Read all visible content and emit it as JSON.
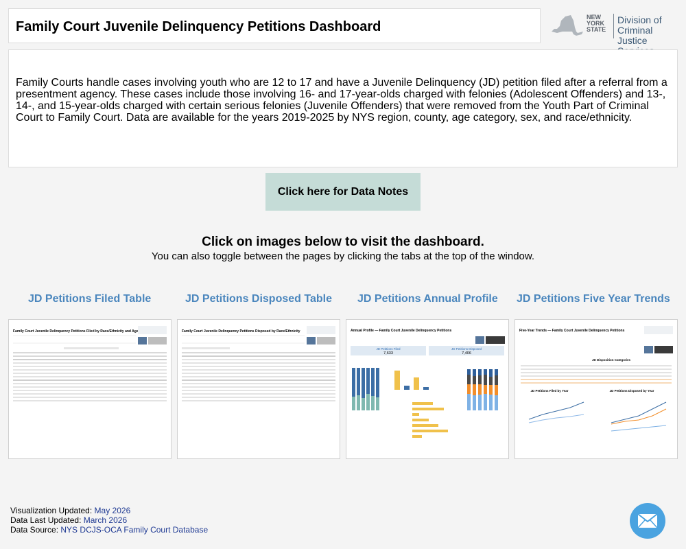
{
  "header": {
    "title": "Family Court Juvenile Delinquency Petitions Dashboard"
  },
  "logo": {
    "state_line1": "NEW",
    "state_line2": "YORK",
    "state_line3": "STATE",
    "agency_line1": "Division of Criminal",
    "agency_line2": "Justice Services"
  },
  "description": "Family Courts handle cases involving youth who are 12 to 17 and have a Juvenile Delinquency (JD) petition filed after a referral from a presentment agency. These cases include those involving 16- and 17-year-olds charged with felonies (Adolescent Offenders) and 13-, 14-, and 15-year-olds charged with certain serious felonies (Juvenile Offenders) that were removed from the Youth Part of Criminal Court to Family Court. Data are available for the years 2019-2025 by NYS region, county, age category, sex, and race/ethnicity.",
  "data_notes_button": "Click here for Data Notes",
  "instructions": {
    "title": "Click on images below to visit the dashboard.",
    "subtitle": "You can also toggle between the pages by clicking the tabs at the top of the window."
  },
  "dashboards": [
    {
      "link": "JD Petitions Filed Table",
      "thumb_title": "Family Court Juvenile Delinquency Petitions Filed by Race/Ethnicity and Age",
      "thumb_buttons": [
        "Reset Filters",
        "Download Data"
      ]
    },
    {
      "link": "JD Petitions Disposed Table",
      "thumb_title": "Family Court Juvenile Delinquency Petitions Disposed by Race/Ethnicity",
      "thumb_buttons": [
        "Reset Filters",
        "Download Data"
      ]
    },
    {
      "link": "JD Petitions Annual Profile",
      "thumb_title": "Annual Profile — Family Court Juvenile Delinquency Petitions",
      "thumb_buttons": [
        "Reset Filters",
        "Download PDF"
      ],
      "filed_label": "JD Petitions Filed",
      "filed_value": "7,633",
      "disposed_label": "JD Petitions Disposed",
      "disposed_value": "7,406"
    },
    {
      "link": "JD Petitions Five Year Trends",
      "thumb_title": "Five-Year Trends — Family Court Juvenile Delinquency Petitions",
      "thumb_buttons": [
        "Reset Filters",
        "Download PDF"
      ],
      "chart1_title": "JD Petitions Filed by Year",
      "chart2_title": "JD Petitions Disposed by Year",
      "table_title": "JD Disposition Categories"
    }
  ],
  "footer": {
    "viz_label": "Visualization Updated:",
    "viz_value": "May 2026",
    "data_label": "Data Last Updated:",
    "data_value": "March 2026",
    "source_label": "Data Source:",
    "source_value": "NYS DCJS-OCA Family Court Database"
  },
  "colors": {
    "link": "#4a86bd",
    "button_bg": "#c5dcd7",
    "mail": "#4aa3e0",
    "footer_value": "#1f3a93"
  },
  "icons": {
    "mail": "envelope-icon",
    "state": "new-york-state-map-icon"
  }
}
